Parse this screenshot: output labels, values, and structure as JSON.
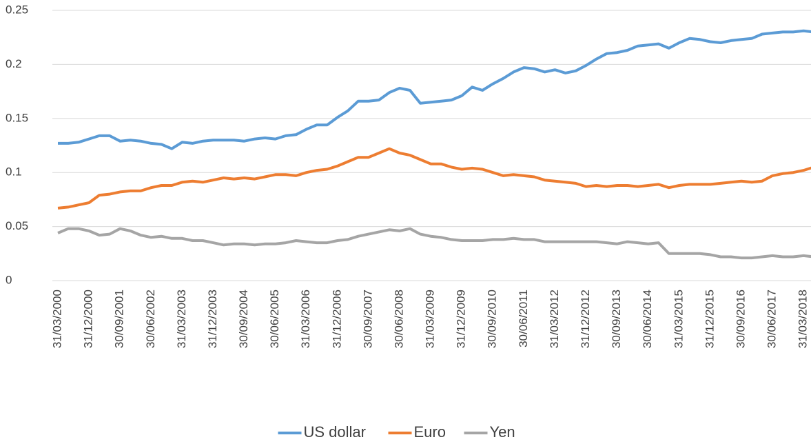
{
  "chart_data": {
    "type": "line",
    "categories": [
      "31/03/2000",
      null,
      null,
      "31/12/2000",
      null,
      null,
      "30/09/2001",
      null,
      null,
      "30/06/2002",
      null,
      null,
      "31/03/2003",
      null,
      null,
      "31/12/2003",
      null,
      null,
      "30/09/2004",
      null,
      null,
      "30/06/2005",
      null,
      null,
      "31/03/2006",
      null,
      null,
      "31/12/2006",
      null,
      null,
      "30/09/2007",
      null,
      null,
      "30/06/2008",
      null,
      null,
      "31/03/2009",
      null,
      null,
      "31/12/2009",
      null,
      null,
      "30/09/2010",
      null,
      null,
      "30/06/2011",
      null,
      null,
      "31/03/2012",
      null,
      null,
      "31/12/2012",
      null,
      null,
      "30/09/2013",
      null,
      null,
      "30/06/2014",
      null,
      null,
      "31/03/2015",
      null,
      null,
      "31/12/2015",
      null,
      null,
      "30/09/2016",
      null,
      null,
      "30/06/2017",
      null,
      null,
      "31/03/2018",
      null
    ],
    "series": [
      {
        "name": "US dollar",
        "color": "#5b9bd5",
        "values": [
          0.127,
          0.127,
          0.128,
          0.131,
          0.134,
          0.134,
          0.129,
          0.13,
          0.129,
          0.127,
          0.126,
          0.122,
          0.128,
          0.127,
          0.129,
          0.13,
          0.13,
          0.13,
          0.129,
          0.131,
          0.132,
          0.131,
          0.134,
          0.135,
          0.14,
          0.144,
          0.144,
          0.151,
          0.157,
          0.166,
          0.166,
          0.167,
          0.174,
          0.178,
          0.176,
          0.164,
          0.165,
          0.166,
          0.167,
          0.171,
          0.179,
          0.176,
          0.182,
          0.187,
          0.193,
          0.197,
          0.196,
          0.193,
          0.195,
          0.192,
          0.194,
          0.199,
          0.205,
          0.21,
          0.211,
          0.213,
          0.217,
          0.218,
          0.219,
          0.215,
          0.22,
          0.224,
          0.223,
          0.221,
          0.22,
          0.222,
          0.223,
          0.224,
          0.228,
          0.229,
          0.23,
          0.23,
          0.231,
          0.23
        ]
      },
      {
        "name": "Euro",
        "color": "#ed7d31",
        "values": [
          0.067,
          0.068,
          0.07,
          0.072,
          0.079,
          0.08,
          0.082,
          0.083,
          0.083,
          0.086,
          0.088,
          0.088,
          0.091,
          0.092,
          0.091,
          0.093,
          0.095,
          0.094,
          0.095,
          0.094,
          0.096,
          0.098,
          0.098,
          0.097,
          0.1,
          0.102,
          0.103,
          0.106,
          0.11,
          0.114,
          0.114,
          0.118,
          0.122,
          0.118,
          0.116,
          0.112,
          0.108,
          0.108,
          0.105,
          0.103,
          0.104,
          0.103,
          0.1,
          0.097,
          0.098,
          0.097,
          0.096,
          0.093,
          0.092,
          0.091,
          0.09,
          0.087,
          0.088,
          0.087,
          0.088,
          0.088,
          0.087,
          0.088,
          0.089,
          0.086,
          0.088,
          0.089,
          0.089,
          0.089,
          0.09,
          0.091,
          0.092,
          0.091,
          0.092,
          0.097,
          0.099,
          0.1,
          0.102,
          0.105
        ]
      },
      {
        "name": "Yen",
        "color": "#a5a5a5",
        "values": [
          0.044,
          0.048,
          0.048,
          0.046,
          0.042,
          0.043,
          0.048,
          0.046,
          0.042,
          0.04,
          0.041,
          0.039,
          0.039,
          0.037,
          0.037,
          0.035,
          0.033,
          0.034,
          0.034,
          0.033,
          0.034,
          0.034,
          0.035,
          0.037,
          0.036,
          0.035,
          0.035,
          0.037,
          0.038,
          0.041,
          0.043,
          0.045,
          0.047,
          0.046,
          0.048,
          0.043,
          0.041,
          0.04,
          0.038,
          0.037,
          0.037,
          0.037,
          0.038,
          0.038,
          0.039,
          0.038,
          0.038,
          0.036,
          0.036,
          0.036,
          0.036,
          0.036,
          0.036,
          0.035,
          0.034,
          0.036,
          0.035,
          0.034,
          0.035,
          0.025,
          0.025,
          0.025,
          0.025,
          0.024,
          0.022,
          0.022,
          0.021,
          0.021,
          0.022,
          0.023,
          0.022,
          0.022,
          0.023,
          0.022
        ]
      }
    ],
    "ylim": [
      0,
      0.25
    ],
    "yticks": [
      0,
      0.05,
      0.1,
      0.15,
      0.2,
      0.25
    ],
    "grid": true,
    "legend": "bottom"
  }
}
